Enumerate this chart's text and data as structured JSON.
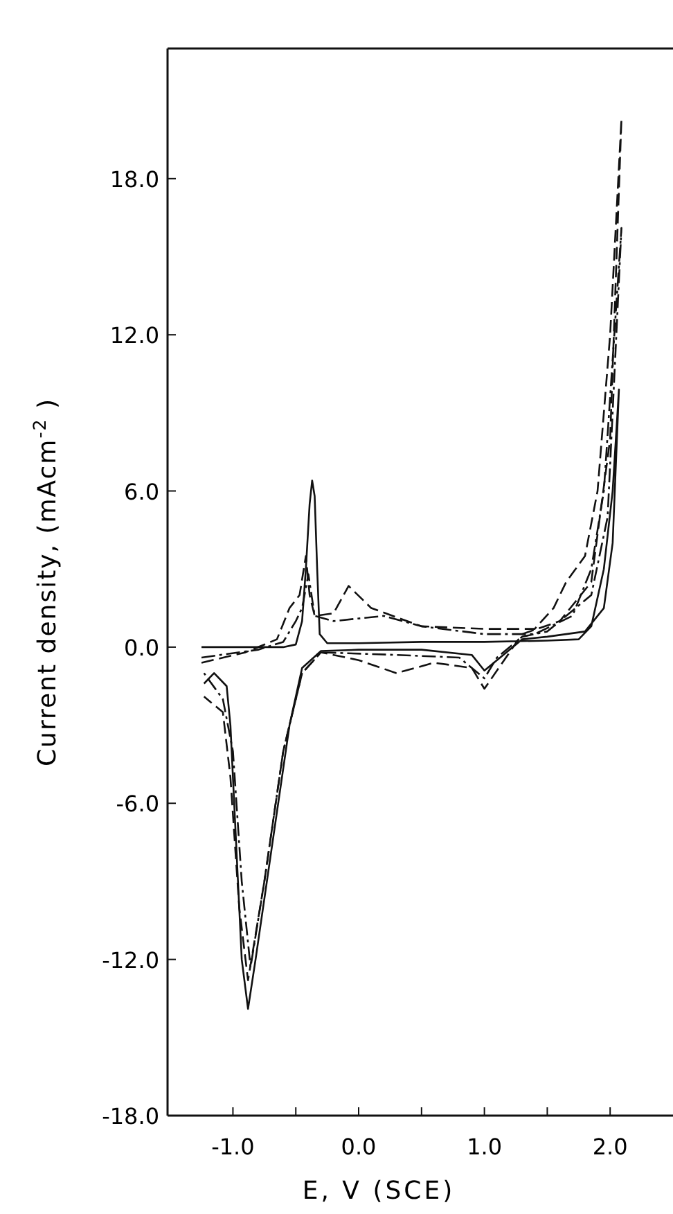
{
  "chart_data": {
    "type": "line",
    "xlabel": "E, V (SCE)",
    "ylabel": "Current density, (mAcm$^{-2}$ )",
    "xlim": [
      -1.52,
      2.5
    ],
    "ylim": [
      -18,
      23
    ],
    "xticks": [
      {
        "value": -1,
        "label": "-1.0"
      },
      {
        "value": -0.5,
        "label": null
      },
      {
        "value": 0,
        "label": "0.0"
      },
      {
        "value": 0.5,
        "label": null
      },
      {
        "value": 1,
        "label": "1.0"
      },
      {
        "value": 1.5,
        "label": null
      },
      {
        "value": 2,
        "label": "2.0"
      }
    ],
    "yticks": [
      {
        "value": -18,
        "label": "-18.0"
      },
      {
        "value": -12,
        "label": "-12.0"
      },
      {
        "value": -6,
        "label": "-6.0"
      },
      {
        "value": 0,
        "label": "0.0"
      },
      {
        "value": 6,
        "label": "6.0"
      },
      {
        "value": 12,
        "label": "12.0"
      },
      {
        "value": 18,
        "label": "18.0"
      }
    ],
    "grid": false,
    "marker": "none",
    "series": [
      {
        "color": "#111111",
        "line_style": "solid",
        "x": [
          -1.25,
          -0.6,
          -0.5,
          -0.45,
          -0.42,
          -0.39,
          -0.37,
          -0.35,
          -0.33,
          -0.31,
          -0.25,
          0,
          0.5,
          1.0,
          1.5,
          1.75,
          1.85,
          1.95,
          2.02,
          2.07,
          2.02,
          1.95,
          1.8,
          1.5,
          1.3,
          1.1,
          1.0,
          0.9,
          0.5,
          0,
          -0.3,
          -0.45,
          -0.55,
          -0.7,
          -0.82,
          -0.88,
          -0.93,
          -0.98,
          -1.02,
          -1.05,
          -1.15,
          -1.23
        ],
        "values": [
          0,
          0,
          0.1,
          1,
          3,
          5.5,
          6.4,
          5.8,
          3,
          0.5,
          0.15,
          0.15,
          0.2,
          0.2,
          0.25,
          0.3,
          0.8,
          3,
          6,
          9.9,
          4,
          1.5,
          0.6,
          0.4,
          0.3,
          -0.5,
          -0.9,
          -0.3,
          -0.1,
          -0.1,
          -0.15,
          -0.8,
          -3,
          -8,
          -12,
          -13.9,
          -12,
          -7,
          -3,
          -1.5,
          -1.0,
          -1.4
        ]
      },
      {
        "color": "#111111",
        "line_style": "dashed",
        "x": [
          -1.25,
          -0.9,
          -0.65,
          -0.55,
          -0.47,
          -0.42,
          -0.39,
          -0.35,
          -0.2,
          -0.08,
          0.1,
          0.5,
          1.0,
          1.4,
          1.55,
          1.65,
          1.8,
          1.9,
          2.0,
          2.09,
          2.0,
          1.85,
          1.6,
          1.3,
          1.2,
          1.0,
          0.9,
          0.6,
          0.3,
          0,
          -0.3,
          -0.45,
          -0.6,
          -0.75,
          -0.88,
          -0.95,
          -1.02,
          -1.08,
          -1.23
        ],
        "values": [
          -0.6,
          -0.2,
          0.3,
          1.5,
          2,
          3.5,
          2,
          1.2,
          1.3,
          2.35,
          1.5,
          0.8,
          0.7,
          0.7,
          1.5,
          2.5,
          3.5,
          6,
          12,
          20.3,
          8,
          2.5,
          1,
          0.5,
          -0.2,
          -1.6,
          -0.8,
          -0.6,
          -1.0,
          -0.5,
          -0.2,
          -1,
          -4,
          -9,
          -12.8,
          -10,
          -5,
          -2.5,
          -1.9
        ]
      },
      {
        "color": "#111111",
        "line_style": "dashdot",
        "x": [
          -1.25,
          -0.8,
          -0.6,
          -0.5,
          -0.45,
          -0.4,
          -0.35,
          -0.2,
          0.2,
          0.5,
          1.0,
          1.4,
          1.7,
          1.85,
          1.95,
          2.09,
          1.98,
          1.85,
          1.5,
          1.3,
          1.1,
          1.0,
          0.8,
          0.3,
          -0.3,
          -0.45,
          -0.6,
          -0.75,
          -0.86,
          -0.93,
          -1.0,
          -1.08,
          -1.23
        ],
        "values": [
          -0.4,
          -0.1,
          0.2,
          1,
          1.5,
          2.8,
          1.2,
          1.0,
          1.2,
          0.8,
          0.5,
          0.5,
          1.2,
          3,
          6,
          16.1,
          5,
          2,
          0.6,
          0.4,
          -0.4,
          -1.2,
          -0.4,
          -0.3,
          -0.2,
          -1,
          -4,
          -9,
          -12.3,
          -9,
          -4,
          -2,
          -1.0
        ]
      }
    ]
  }
}
